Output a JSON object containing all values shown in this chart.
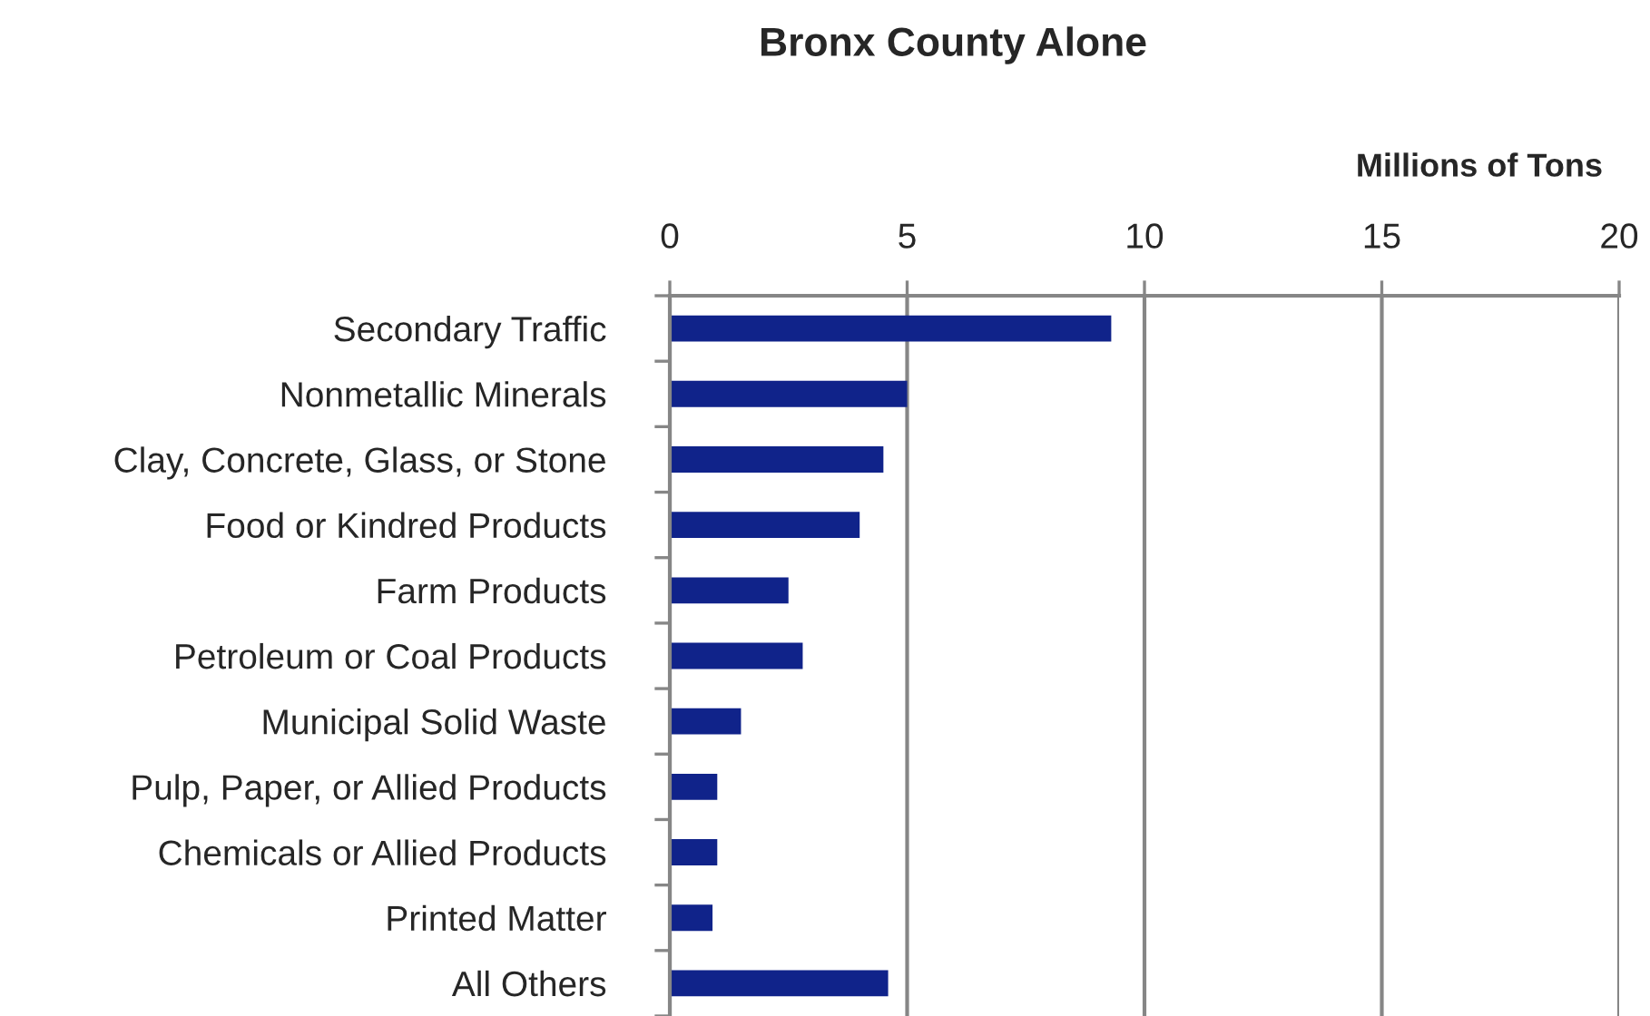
{
  "chart_data": {
    "type": "bar",
    "orientation": "horizontal",
    "title": "Bronx County Alone",
    "xlabel": "Millions of Tons",
    "categories": [
      "Secondary Traffic",
      "Nonmetallic Minerals",
      "Clay, Concrete, Glass, or Stone",
      "Food or Kindred Products",
      "Farm Products",
      "Petroleum or Coal Products",
      "Municipal Solid Waste",
      "Pulp, Paper, or Allied Products",
      "Chemicals or Allied Products",
      "Printed Matter",
      "All Others"
    ],
    "values": [
      9.3,
      5.0,
      4.5,
      4.0,
      2.5,
      2.8,
      1.5,
      1.0,
      1.0,
      0.9,
      4.6
    ],
    "color": "#10238a",
    "xlim": [
      0,
      20
    ],
    "xticks": [
      0,
      5,
      10,
      15,
      20
    ],
    "grid": "x"
  }
}
